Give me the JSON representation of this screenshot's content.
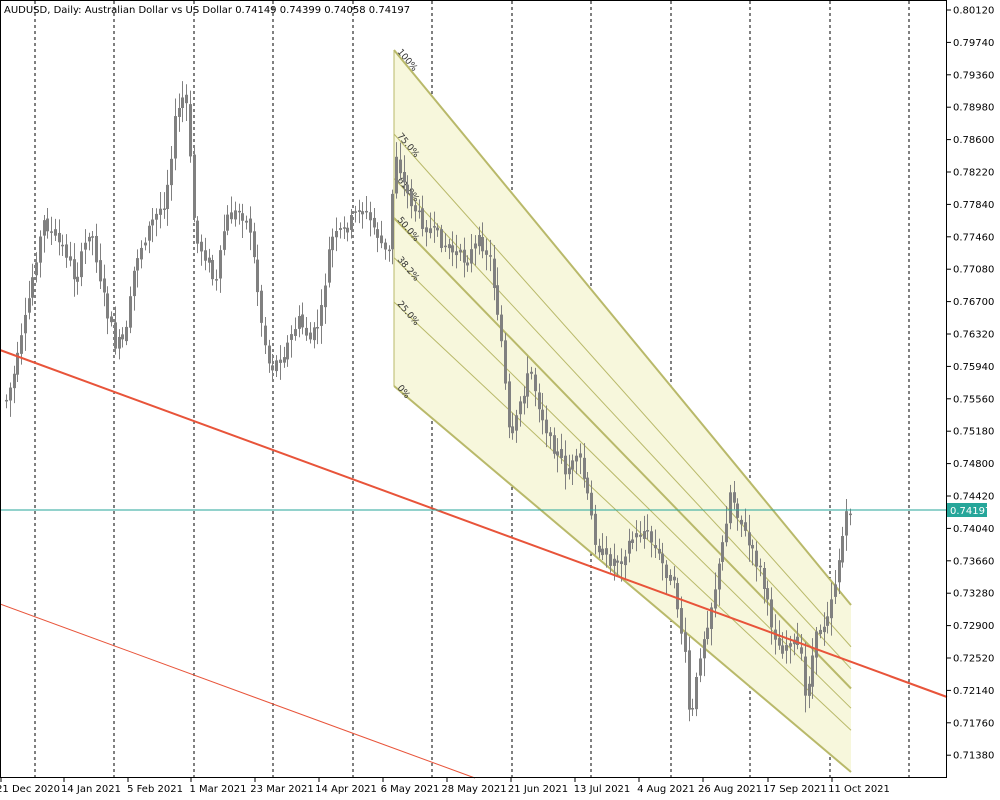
{
  "chart_data": {
    "type": "candlestick",
    "symbol": "AUDUSD",
    "timeframe": "Daily",
    "description": "Australian Dollar vs US Dollar",
    "title": "AUDUSD, Daily:  Australian Dollar vs US Dollar  0.74149 0.74399 0.74058 0.74197",
    "last_ohlc": {
      "open": "0.74149",
      "high": "0.74399",
      "low": "0.74058",
      "close": "0.74197"
    },
    "current_price": "0.74197",
    "ylim": [
      0.7103,
      0.8024
    ],
    "y_ticks": [
      "0.80120",
      "0.79740",
      "0.79360",
      "0.78980",
      "0.78600",
      "0.78220",
      "0.77840",
      "0.77460",
      "0.77080",
      "0.76700",
      "0.76320",
      "0.75940",
      "0.75560",
      "0.75180",
      "0.74800",
      "0.74420",
      "0.74040",
      "0.73660",
      "0.73280",
      "0.72900",
      "0.72520",
      "0.72140",
      "0.71760",
      "0.71380"
    ],
    "x_ticks": [
      "21 Dec 2020",
      "14 Jan 2021",
      "5 Feb 2021",
      "1 Mar 2021",
      "23 Mar 2021",
      "14 Apr 2021",
      "6 May 2021",
      "28 May 2021",
      "21 Jun 2021",
      "13 Jul 2021",
      "4 Aug 2021",
      "26 Aug 2021",
      "17 Sep 2021",
      "11 Oct 2021"
    ],
    "fib_labels": [
      "100%",
      "75.0%",
      "61.8%",
      "50.0%",
      "38.2%",
      "25.0%",
      "0%"
    ],
    "grid": "vertical dotted",
    "colors": {
      "candle": "#808080",
      "trendline": "#e8543a",
      "channel": "#b9b96a",
      "fill": "#f7f7dc",
      "price_line": "#26a69a",
      "badge": "#26a69a"
    }
  }
}
